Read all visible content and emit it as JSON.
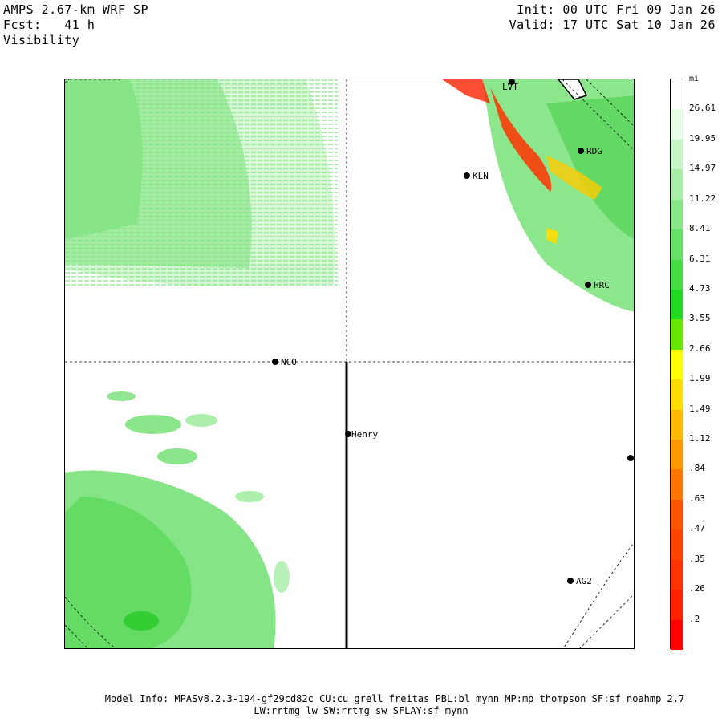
{
  "header": {
    "left_line1": "AMPS 2.67-km WRF SP",
    "left_line2": "Fcst:   41 h",
    "left_line3": "Visibility",
    "right_line1": "Init: 00 UTC Fri 09 Jan 26",
    "right_line2": "Valid: 17 UTC Sat 10 Jan 26"
  },
  "stations": [
    {
      "id": "LVT",
      "label": "LVT"
    },
    {
      "id": "RDG",
      "label": "RDG"
    },
    {
      "id": "KLN",
      "label": "KLN"
    },
    {
      "id": "HRC",
      "label": "HRC"
    },
    {
      "id": "NCO",
      "label": "NCO"
    },
    {
      "id": "Henry",
      "label": "Henry"
    },
    {
      "id": "AG2",
      "label": "AG2"
    },
    {
      "id": "unlabeled",
      "label": ""
    }
  ],
  "colorbar": {
    "unit": "mi",
    "labels": [
      "26.61",
      "19.95",
      "14.97",
      "11.22",
      "8.41",
      "6.31",
      "4.73",
      "3.55",
      "2.66",
      "1.99",
      "1.49",
      "1.12",
      ".84",
      ".63",
      ".47",
      ".35",
      ".26",
      ".2"
    ],
    "colors": [
      "#ffffff",
      "#e8ffe8",
      "#c8f5c8",
      "#a8eea8",
      "#88e888",
      "#66e066",
      "#44dd44",
      "#22d822",
      "#66e600",
      "#ffff00",
      "#ffdd00",
      "#ffbb00",
      "#ff9900",
      "#ff7700",
      "#ff5500",
      "#ff4400",
      "#ff3300",
      "#ff2200",
      "#ff0000"
    ]
  },
  "footer": {
    "line1": "Model Info: MPASv8.2.3-194-gf29cd82c CU:cu_grell_freitas PBL:bl_mynn MP:mp_thompson SF:sf_noahmp 2.7",
    "line2": "LW:rrtmg_lw SW:rrtmg_sw SFLAY:sf_mynn"
  }
}
